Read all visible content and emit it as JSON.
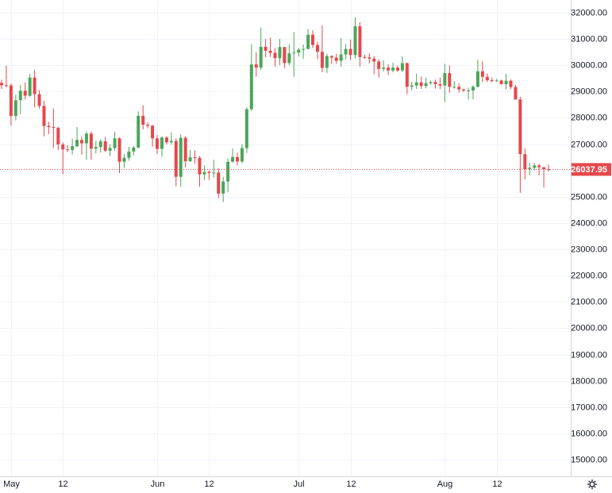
{
  "chart_data": {
    "type": "candlestick",
    "categories": [
      null,
      null,
      "May",
      null,
      null,
      null,
      null,
      null,
      null,
      null,
      null,
      null,
      null,
      "12",
      null,
      null,
      null,
      null,
      null,
      null,
      null,
      null,
      null,
      null,
      null,
      null,
      null,
      null,
      null,
      null,
      null,
      null,
      null,
      "Jun",
      null,
      null,
      null,
      null,
      null,
      null,
      null,
      null,
      null,
      null,
      "12",
      null,
      null,
      null,
      null,
      null,
      null,
      null,
      null,
      null,
      null,
      null,
      null,
      null,
      null,
      null,
      null,
      null,
      null,
      "Jul",
      null,
      null,
      null,
      null,
      null,
      null,
      null,
      null,
      null,
      null,
      "12",
      null,
      null,
      null,
      null,
      null,
      null,
      null,
      null,
      null,
      null,
      null,
      null,
      null,
      null,
      null,
      null,
      null,
      null,
      null,
      "Aug",
      null,
      null,
      null,
      null,
      null,
      null,
      null,
      null,
      null,
      null,
      "12",
      null,
      null,
      null,
      null,
      null,
      null,
      null,
      null,
      null,
      null,
      null
    ],
    "candles": [
      [
        29330,
        29450,
        29100,
        29240
      ],
      [
        29240,
        29980,
        29150,
        29230
      ],
      [
        29230,
        29300,
        27700,
        28070
      ],
      [
        28070,
        28880,
        27900,
        28670
      ],
      [
        28670,
        29260,
        28150,
        29030
      ],
      [
        29030,
        29350,
        28700,
        28840
      ],
      [
        28840,
        29670,
        28800,
        29530
      ],
      [
        29530,
        29820,
        28400,
        28900
      ],
      [
        28900,
        29050,
        28350,
        28450
      ],
      [
        28450,
        28650,
        27300,
        27690
      ],
      [
        27690,
        27850,
        27380,
        27650
      ],
      [
        27650,
        28350,
        26850,
        27620
      ],
      [
        27620,
        27660,
        26770,
        26990
      ],
      [
        26990,
        27070,
        25850,
        26800
      ],
      [
        26800,
        26960,
        26700,
        26780
      ],
      [
        26780,
        27200,
        26600,
        26920
      ],
      [
        26920,
        27650,
        26880,
        27160
      ],
      [
        27160,
        27280,
        26600,
        27030
      ],
      [
        27030,
        27480,
        26400,
        27400
      ],
      [
        27400,
        27480,
        26400,
        26830
      ],
      [
        26830,
        27130,
        26650,
        26890
      ],
      [
        26890,
        27180,
        26680,
        27110
      ],
      [
        27110,
        27280,
        26700,
        26750
      ],
      [
        26750,
        27000,
        26550,
        26850
      ],
      [
        26850,
        27470,
        26750,
        27220
      ],
      [
        27220,
        27260,
        25900,
        26330
      ],
      [
        26330,
        26620,
        26100,
        26480
      ],
      [
        26480,
        26900,
        26370,
        26720
      ],
      [
        26720,
        26930,
        26580,
        26870
      ],
      [
        26870,
        28250,
        26850,
        28080
      ],
      [
        28080,
        28480,
        27560,
        27740
      ],
      [
        27740,
        27830,
        27600,
        27700
      ],
      [
        27700,
        27740,
        26900,
        27220
      ],
      [
        27220,
        27350,
        26620,
        26820
      ],
      [
        26820,
        27300,
        26520,
        27250
      ],
      [
        27250,
        27300,
        26990,
        27070
      ],
      [
        27070,
        27450,
        26980,
        27120
      ],
      [
        27120,
        27220,
        25400,
        25760
      ],
      [
        25760,
        27370,
        25380,
        27240
      ],
      [
        27240,
        27300,
        26120,
        26350
      ],
      [
        26350,
        26780,
        26330,
        26500
      ],
      [
        26500,
        26760,
        26250,
        26480
      ],
      [
        26480,
        26550,
        25380,
        25850
      ],
      [
        25850,
        26190,
        25640,
        25940
      ],
      [
        25940,
        26000,
        25640,
        25900
      ],
      [
        25900,
        26400,
        25730,
        25920
      ],
      [
        25920,
        26080,
        24950,
        25120
      ],
      [
        25120,
        25760,
        24800,
        25580
      ],
      [
        25580,
        26450,
        25170,
        26330
      ],
      [
        26330,
        26830,
        26300,
        26510
      ],
      [
        26510,
        26680,
        26190,
        26340
      ],
      [
        26340,
        27000,
        26270,
        26850
      ],
      [
        26850,
        28400,
        26660,
        28330
      ],
      [
        28330,
        30800,
        28260,
        30030
      ],
      [
        30030,
        30500,
        29560,
        29910
      ],
      [
        29910,
        31430,
        29820,
        30700
      ],
      [
        30700,
        31000,
        30300,
        30550
      ],
      [
        30550,
        31050,
        30320,
        30470
      ],
      [
        30470,
        30650,
        29950,
        30270
      ],
      [
        30270,
        31000,
        30000,
        30690
      ],
      [
        30690,
        30700,
        29900,
        30080
      ],
      [
        30080,
        30800,
        30000,
        30450
      ],
      [
        30450,
        31260,
        29550,
        30480
      ],
      [
        30480,
        30650,
        30330,
        30590
      ],
      [
        30590,
        30790,
        30250,
        30620
      ],
      [
        30620,
        31380,
        30600,
        31160
      ],
      [
        31160,
        31330,
        30650,
        30770
      ],
      [
        30770,
        30880,
        30230,
        30510
      ],
      [
        30510,
        31520,
        29730,
        29900
      ],
      [
        29900,
        30440,
        29710,
        30350
      ],
      [
        30350,
        30380,
        30050,
        30290
      ],
      [
        30290,
        30430,
        30050,
        30170
      ],
      [
        30170,
        31030,
        29950,
        30410
      ],
      [
        30410,
        30800,
        30220,
        30620
      ],
      [
        30620,
        30970,
        30200,
        30390
      ],
      [
        30390,
        31820,
        30250,
        31480
      ],
      [
        31480,
        31640,
        29950,
        30310
      ],
      [
        30310,
        30400,
        30240,
        30300
      ],
      [
        30300,
        30450,
        30070,
        30250
      ],
      [
        30250,
        30340,
        29660,
        30140
      ],
      [
        30140,
        30230,
        29530,
        29860
      ],
      [
        29860,
        30190,
        29760,
        29910
      ],
      [
        29910,
        30040,
        29620,
        29800
      ],
      [
        29800,
        30100,
        29730,
        29910
      ],
      [
        29910,
        29990,
        29740,
        29800
      ],
      [
        29800,
        30340,
        29740,
        30080
      ],
      [
        30080,
        30100,
        28900,
        29180
      ],
      [
        29180,
        29370,
        29050,
        29230
      ],
      [
        29230,
        29680,
        29100,
        29350
      ],
      [
        29350,
        29570,
        29100,
        29210
      ],
      [
        29210,
        29530,
        29120,
        29320
      ],
      [
        29320,
        29410,
        29260,
        29360
      ],
      [
        29360,
        29450,
        29110,
        29280
      ],
      [
        29280,
        29530,
        29100,
        29230
      ],
      [
        29230,
        30050,
        28600,
        29700
      ],
      [
        29700,
        29990,
        28950,
        29180
      ],
      [
        29180,
        29400,
        29110,
        29180
      ],
      [
        29180,
        29310,
        28960,
        29080
      ],
      [
        29080,
        29110,
        28970,
        29040
      ],
      [
        29040,
        29150,
        28700,
        29040
      ],
      [
        29040,
        29240,
        28710,
        29180
      ],
      [
        29180,
        30200,
        29150,
        29770
      ],
      [
        29770,
        30150,
        29360,
        29560
      ],
      [
        29560,
        29690,
        29360,
        29430
      ],
      [
        29430,
        29530,
        29350,
        29400
      ],
      [
        29400,
        29480,
        29370,
        29420
      ],
      [
        29420,
        29450,
        29270,
        29280
      ],
      [
        29280,
        29670,
        29080,
        29410
      ],
      [
        29410,
        29460,
        29090,
        29170
      ],
      [
        29170,
        29250,
        28690,
        28700
      ],
      [
        28700,
        28800,
        25150,
        26620
      ],
      [
        26620,
        26840,
        25660,
        26050
      ],
      [
        26050,
        26290,
        25810,
        26100
      ],
      [
        26100,
        26290,
        26000,
        26190
      ],
      [
        26190,
        26250,
        25810,
        26120
      ],
      [
        26120,
        26140,
        25350,
        26050
      ],
      [
        26050,
        26230,
        25960,
        26037.95
      ]
    ],
    "up_color": "#4ca55a",
    "down_color": "#e5484d",
    "last_price": 26037.95,
    "ylim": [
      14370,
      32480
    ],
    "yticks": [
      {
        "value": 15000,
        "label": "15000.00"
      },
      {
        "value": 16000,
        "label": "16000.00"
      },
      {
        "value": 17000,
        "label": "17000.00"
      },
      {
        "value": 18000,
        "label": "18000.00"
      },
      {
        "value": 19000,
        "label": "19000.00"
      },
      {
        "value": 20000,
        "label": "20000.00"
      },
      {
        "value": 21000,
        "label": "21000.00"
      },
      {
        "value": 22000,
        "label": "22000.00"
      },
      {
        "value": 23000,
        "label": "23000.00"
      },
      {
        "value": 24000,
        "label": "24000.00"
      },
      {
        "value": 25000,
        "label": "25000.00"
      },
      {
        "value": 26000,
        "label": "26000.00"
      },
      {
        "value": 27000,
        "label": "27000.00"
      },
      {
        "value": 28000,
        "label": "28000.00"
      },
      {
        "value": 29000,
        "label": "29000.00"
      },
      {
        "value": 30000,
        "label": "30000.00"
      },
      {
        "value": 31000,
        "label": "31000.00"
      },
      {
        "value": 32000,
        "label": "32000.00"
      }
    ],
    "grid": true
  }
}
